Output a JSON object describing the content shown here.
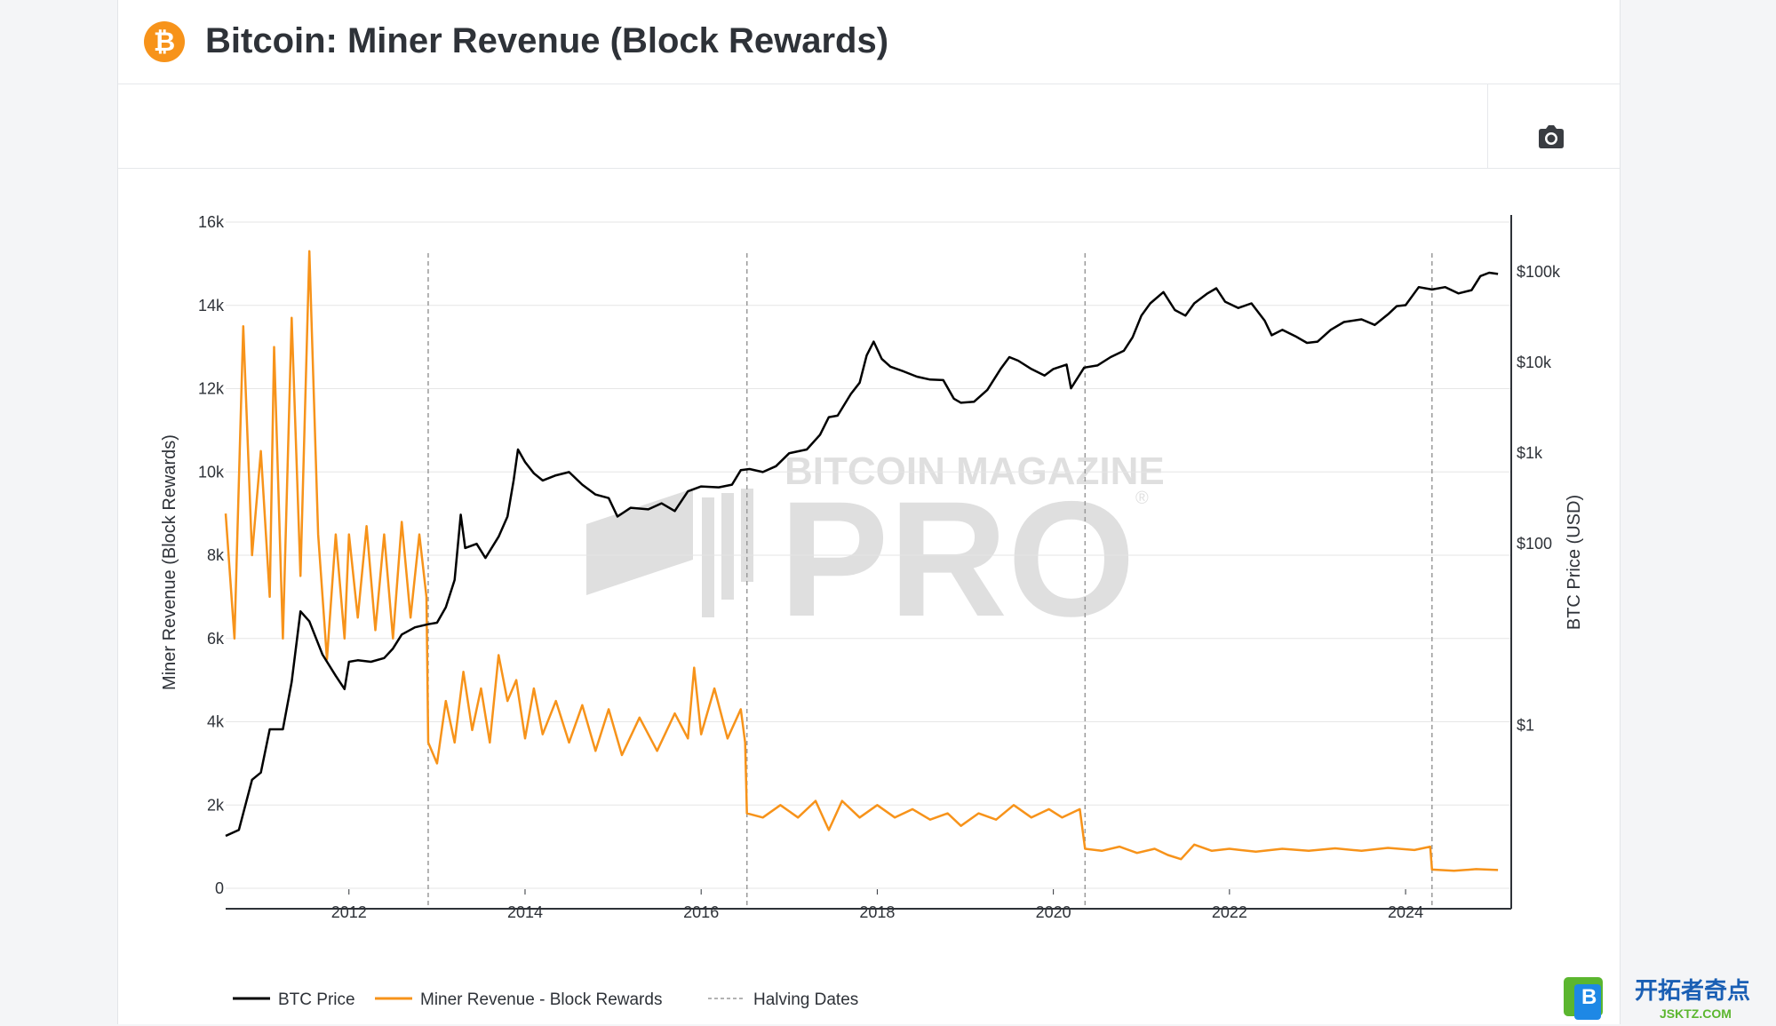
{
  "header": {
    "title": "Bitcoin: Miner Revenue (Block Rewards)",
    "logo_glyph": "₿",
    "logo_color": "#f7931a"
  },
  "toolbar": {
    "camera_icon": "camera-icon"
  },
  "watermark": {
    "line1": "BITCOIN MAGAZINE",
    "line2": "PRO",
    "mark": "®"
  },
  "corner_logo": {
    "glyph": "B",
    "text": "开拓者奇点",
    "subtext": "JSKTZ.COM"
  },
  "legend": [
    {
      "label": "BTC Price",
      "color": "#000000",
      "style": "solid"
    },
    {
      "label": "Miner Revenue - Block Rewards",
      "color": "#f7931a",
      "style": "solid"
    },
    {
      "label": "Halving Dates",
      "color": "#9a9a9a",
      "style": "dashed"
    }
  ],
  "chart_data": {
    "type": "line",
    "x_range": [
      2010.6,
      2025.2
    ],
    "x_ticks": [
      "2012",
      "2014",
      "2016",
      "2018",
      "2020",
      "2022",
      "2024"
    ],
    "ylabel_left": "Miner Revenue (Block Rewards)",
    "ylim_left": [
      0,
      16000
    ],
    "y_ticks_left": [
      "0",
      "2k",
      "4k",
      "6k",
      "8k",
      "10k",
      "12k",
      "14k",
      "16k"
    ],
    "ylabel_right": "BTC Price (USD)",
    "y_right_scale": "log",
    "y_ticks_right": [
      "$1",
      "$100",
      "$1k",
      "$10k",
      "$100k"
    ],
    "grid": true,
    "legend_position": "bottom-left",
    "halving_dates": [
      2012.9,
      2016.52,
      2020.36,
      2024.3
    ],
    "series": [
      {
        "name": "BTC Price",
        "axis": "right",
        "color": "#000000",
        "points": [
          [
            2010.6,
            0.06
          ],
          [
            2010.75,
            0.07
          ],
          [
            2010.9,
            0.25
          ],
          [
            2011.0,
            0.3
          ],
          [
            2011.1,
            0.9
          ],
          [
            2011.25,
            0.9
          ],
          [
            2011.35,
            3
          ],
          [
            2011.45,
            18
          ],
          [
            2011.55,
            14
          ],
          [
            2011.7,
            6
          ],
          [
            2011.85,
            3.5
          ],
          [
            2011.95,
            2.5
          ],
          [
            2012.0,
            5
          ],
          [
            2012.1,
            5.2
          ],
          [
            2012.25,
            5
          ],
          [
            2012.4,
            5.5
          ],
          [
            2012.5,
            7
          ],
          [
            2012.6,
            10
          ],
          [
            2012.75,
            12
          ],
          [
            2012.9,
            13
          ],
          [
            2013.0,
            13.5
          ],
          [
            2013.1,
            20
          ],
          [
            2013.2,
            40
          ],
          [
            2013.27,
            210
          ],
          [
            2013.32,
            90
          ],
          [
            2013.45,
            100
          ],
          [
            2013.55,
            70
          ],
          [
            2013.7,
            120
          ],
          [
            2013.8,
            200
          ],
          [
            2013.87,
            500
          ],
          [
            2013.92,
            1100
          ],
          [
            2014.0,
            800
          ],
          [
            2014.1,
            600
          ],
          [
            2014.2,
            500
          ],
          [
            2014.35,
            570
          ],
          [
            2014.5,
            620
          ],
          [
            2014.65,
            450
          ],
          [
            2014.8,
            350
          ],
          [
            2014.95,
            320
          ],
          [
            2015.05,
            200
          ],
          [
            2015.2,
            250
          ],
          [
            2015.4,
            240
          ],
          [
            2015.55,
            280
          ],
          [
            2015.7,
            230
          ],
          [
            2015.85,
            380
          ],
          [
            2016.0,
            430
          ],
          [
            2016.2,
            420
          ],
          [
            2016.35,
            450
          ],
          [
            2016.45,
            650
          ],
          [
            2016.55,
            670
          ],
          [
            2016.7,
            620
          ],
          [
            2016.85,
            720
          ],
          [
            2017.0,
            1000
          ],
          [
            2017.2,
            1100
          ],
          [
            2017.35,
            1600
          ],
          [
            2017.45,
            2500
          ],
          [
            2017.55,
            2600
          ],
          [
            2017.7,
            4500
          ],
          [
            2017.8,
            6000
          ],
          [
            2017.88,
            12000
          ],
          [
            2017.96,
            17000
          ],
          [
            2018.05,
            11000
          ],
          [
            2018.15,
            9000
          ],
          [
            2018.3,
            8000
          ],
          [
            2018.45,
            7000
          ],
          [
            2018.6,
            6500
          ],
          [
            2018.75,
            6400
          ],
          [
            2018.87,
            4000
          ],
          [
            2018.95,
            3600
          ],
          [
            2019.1,
            3700
          ],
          [
            2019.25,
            5000
          ],
          [
            2019.4,
            8500
          ],
          [
            2019.5,
            11500
          ],
          [
            2019.6,
            10500
          ],
          [
            2019.75,
            8500
          ],
          [
            2019.9,
            7200
          ],
          [
            2020.0,
            8500
          ],
          [
            2020.15,
            9500
          ],
          [
            2020.2,
            5200
          ],
          [
            2020.35,
            8800
          ],
          [
            2020.5,
            9300
          ],
          [
            2020.65,
            11500
          ],
          [
            2020.8,
            13500
          ],
          [
            2020.9,
            19000
          ],
          [
            2021.0,
            33000
          ],
          [
            2021.1,
            45000
          ],
          [
            2021.25,
            60000
          ],
          [
            2021.38,
            38000
          ],
          [
            2021.5,
            33000
          ],
          [
            2021.6,
            45000
          ],
          [
            2021.75,
            58000
          ],
          [
            2021.85,
            66000
          ],
          [
            2021.95,
            47000
          ],
          [
            2022.1,
            40000
          ],
          [
            2022.25,
            45000
          ],
          [
            2022.4,
            29000
          ],
          [
            2022.48,
            20000
          ],
          [
            2022.6,
            23000
          ],
          [
            2022.75,
            19500
          ],
          [
            2022.88,
            16500
          ],
          [
            2023.0,
            17000
          ],
          [
            2023.15,
            23000
          ],
          [
            2023.3,
            28000
          ],
          [
            2023.5,
            30000
          ],
          [
            2023.65,
            26000
          ],
          [
            2023.8,
            34000
          ],
          [
            2023.9,
            42000
          ],
          [
            2024.0,
            43000
          ],
          [
            2024.15,
            68000
          ],
          [
            2024.3,
            64000
          ],
          [
            2024.45,
            68000
          ],
          [
            2024.6,
            58000
          ],
          [
            2024.75,
            63000
          ],
          [
            2024.85,
            90000
          ],
          [
            2024.95,
            98000
          ],
          [
            2025.05,
            95000
          ]
        ]
      },
      {
        "name": "Miner Revenue - Block Rewards",
        "axis": "left",
        "color": "#f7931a",
        "points": [
          [
            2010.6,
            9000
          ],
          [
            2010.7,
            6000
          ],
          [
            2010.8,
            13500
          ],
          [
            2010.9,
            8000
          ],
          [
            2011.0,
            10500
          ],
          [
            2011.1,
            7000
          ],
          [
            2011.15,
            13000
          ],
          [
            2011.25,
            6000
          ],
          [
            2011.35,
            13700
          ],
          [
            2011.45,
            7500
          ],
          [
            2011.55,
            15300
          ],
          [
            2011.65,
            8500
          ],
          [
            2011.75,
            5500
          ],
          [
            2011.85,
            8500
          ],
          [
            2011.95,
            6000
          ],
          [
            2012.0,
            8500
          ],
          [
            2012.1,
            6500
          ],
          [
            2012.2,
            8700
          ],
          [
            2012.3,
            6200
          ],
          [
            2012.4,
            8500
          ],
          [
            2012.5,
            6000
          ],
          [
            2012.6,
            8800
          ],
          [
            2012.7,
            6500
          ],
          [
            2012.8,
            8500
          ],
          [
            2012.88,
            7000
          ],
          [
            2012.9,
            3500
          ],
          [
            2013.0,
            3000
          ],
          [
            2013.1,
            4500
          ],
          [
            2013.2,
            3500
          ],
          [
            2013.3,
            5200
          ],
          [
            2013.4,
            3800
          ],
          [
            2013.5,
            4800
          ],
          [
            2013.6,
            3500
          ],
          [
            2013.7,
            5600
          ],
          [
            2013.8,
            4500
          ],
          [
            2013.9,
            5000
          ],
          [
            2014.0,
            3600
          ],
          [
            2014.1,
            4800
          ],
          [
            2014.2,
            3700
          ],
          [
            2014.35,
            4500
          ],
          [
            2014.5,
            3500
          ],
          [
            2014.65,
            4400
          ],
          [
            2014.8,
            3300
          ],
          [
            2014.95,
            4300
          ],
          [
            2015.1,
            3200
          ],
          [
            2015.3,
            4100
          ],
          [
            2015.5,
            3300
          ],
          [
            2015.7,
            4200
          ],
          [
            2015.85,
            3600
          ],
          [
            2015.92,
            5300
          ],
          [
            2016.0,
            3700
          ],
          [
            2016.15,
            4800
          ],
          [
            2016.3,
            3600
          ],
          [
            2016.45,
            4300
          ],
          [
            2016.5,
            3500
          ],
          [
            2016.52,
            1800
          ],
          [
            2016.7,
            1700
          ],
          [
            2016.9,
            2000
          ],
          [
            2017.1,
            1700
          ],
          [
            2017.3,
            2100
          ],
          [
            2017.45,
            1400
          ],
          [
            2017.6,
            2100
          ],
          [
            2017.8,
            1700
          ],
          [
            2018.0,
            2000
          ],
          [
            2018.2,
            1700
          ],
          [
            2018.4,
            1900
          ],
          [
            2018.6,
            1650
          ],
          [
            2018.8,
            1800
          ],
          [
            2018.95,
            1500
          ],
          [
            2019.15,
            1800
          ],
          [
            2019.35,
            1650
          ],
          [
            2019.55,
            2000
          ],
          [
            2019.75,
            1700
          ],
          [
            2019.95,
            1900
          ],
          [
            2020.1,
            1700
          ],
          [
            2020.3,
            1900
          ],
          [
            2020.36,
            950
          ],
          [
            2020.55,
            900
          ],
          [
            2020.75,
            1000
          ],
          [
            2020.95,
            850
          ],
          [
            2021.15,
            950
          ],
          [
            2021.3,
            800
          ],
          [
            2021.45,
            700
          ],
          [
            2021.6,
            1050
          ],
          [
            2021.8,
            900
          ],
          [
            2022.0,
            950
          ],
          [
            2022.3,
            880
          ],
          [
            2022.6,
            950
          ],
          [
            2022.9,
            900
          ],
          [
            2023.2,
            960
          ],
          [
            2023.5,
            900
          ],
          [
            2023.8,
            970
          ],
          [
            2024.1,
            920
          ],
          [
            2024.28,
            1000
          ],
          [
            2024.3,
            450
          ],
          [
            2024.55,
            420
          ],
          [
            2024.8,
            460
          ],
          [
            2025.05,
            440
          ]
        ]
      }
    ]
  }
}
